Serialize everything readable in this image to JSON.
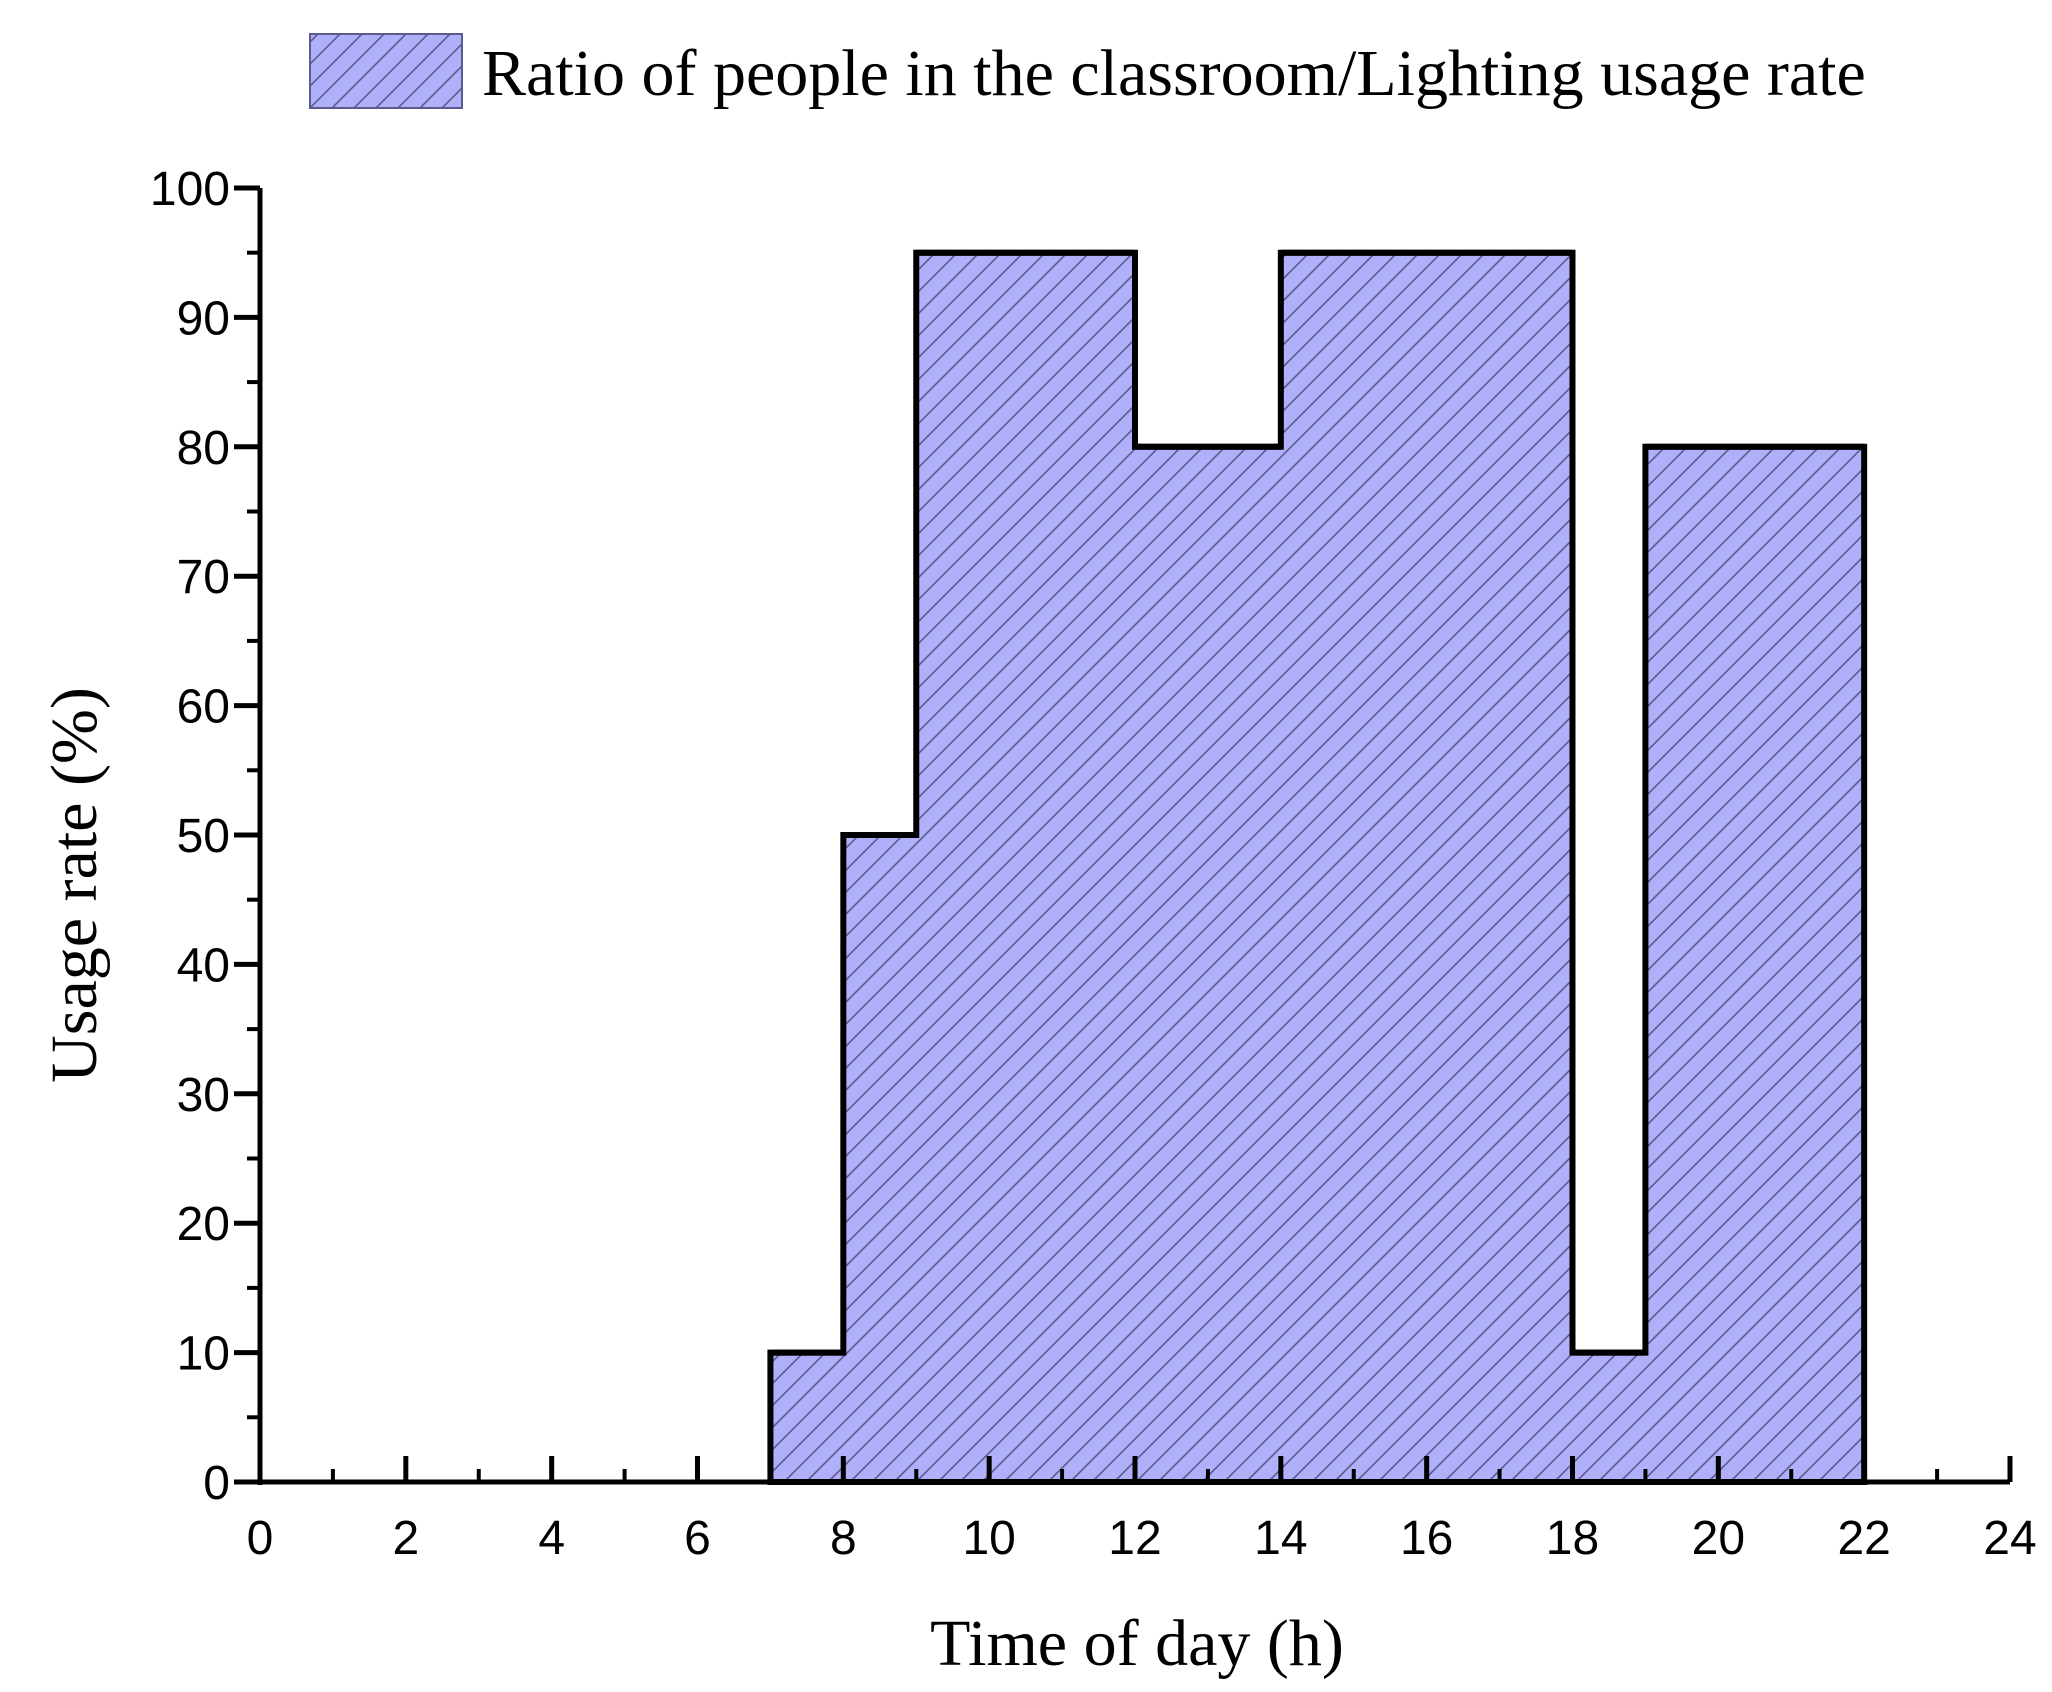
{
  "chart_data": {
    "type": "area",
    "series": [
      {
        "name": "Ratio of people in the classroom/Lighting usage rate",
        "steps": [
          {
            "x0": 7,
            "x1": 8,
            "y": 10
          },
          {
            "x0": 8,
            "x1": 9,
            "y": 50
          },
          {
            "x0": 9,
            "x1": 12,
            "y": 95
          },
          {
            "x0": 12,
            "x1": 14,
            "y": 80
          },
          {
            "x0": 14,
            "x1": 18,
            "y": 95
          },
          {
            "x0": 18,
            "x1": 19,
            "y": 10
          },
          {
            "x0": 19,
            "x1": 22,
            "y": 80
          }
        ]
      }
    ],
    "xlabel": "Time of day (h)",
    "ylabel": "Usage rate (%)",
    "xlim": [
      0,
      24
    ],
    "ylim": [
      0,
      100
    ],
    "xticks": [
      "0",
      "2",
      "4",
      "6",
      "8",
      "10",
      "12",
      "14",
      "16",
      "18",
      "20",
      "22",
      "24"
    ],
    "yticks": [
      "0",
      "10",
      "20",
      "30",
      "40",
      "50",
      "60",
      "70",
      "80",
      "90",
      "100"
    ],
    "fill_color": "#b0b0fa",
    "hatch_color": "#5a5a8c",
    "edge_color": "#000000",
    "legend_position": "top",
    "grid": false
  }
}
